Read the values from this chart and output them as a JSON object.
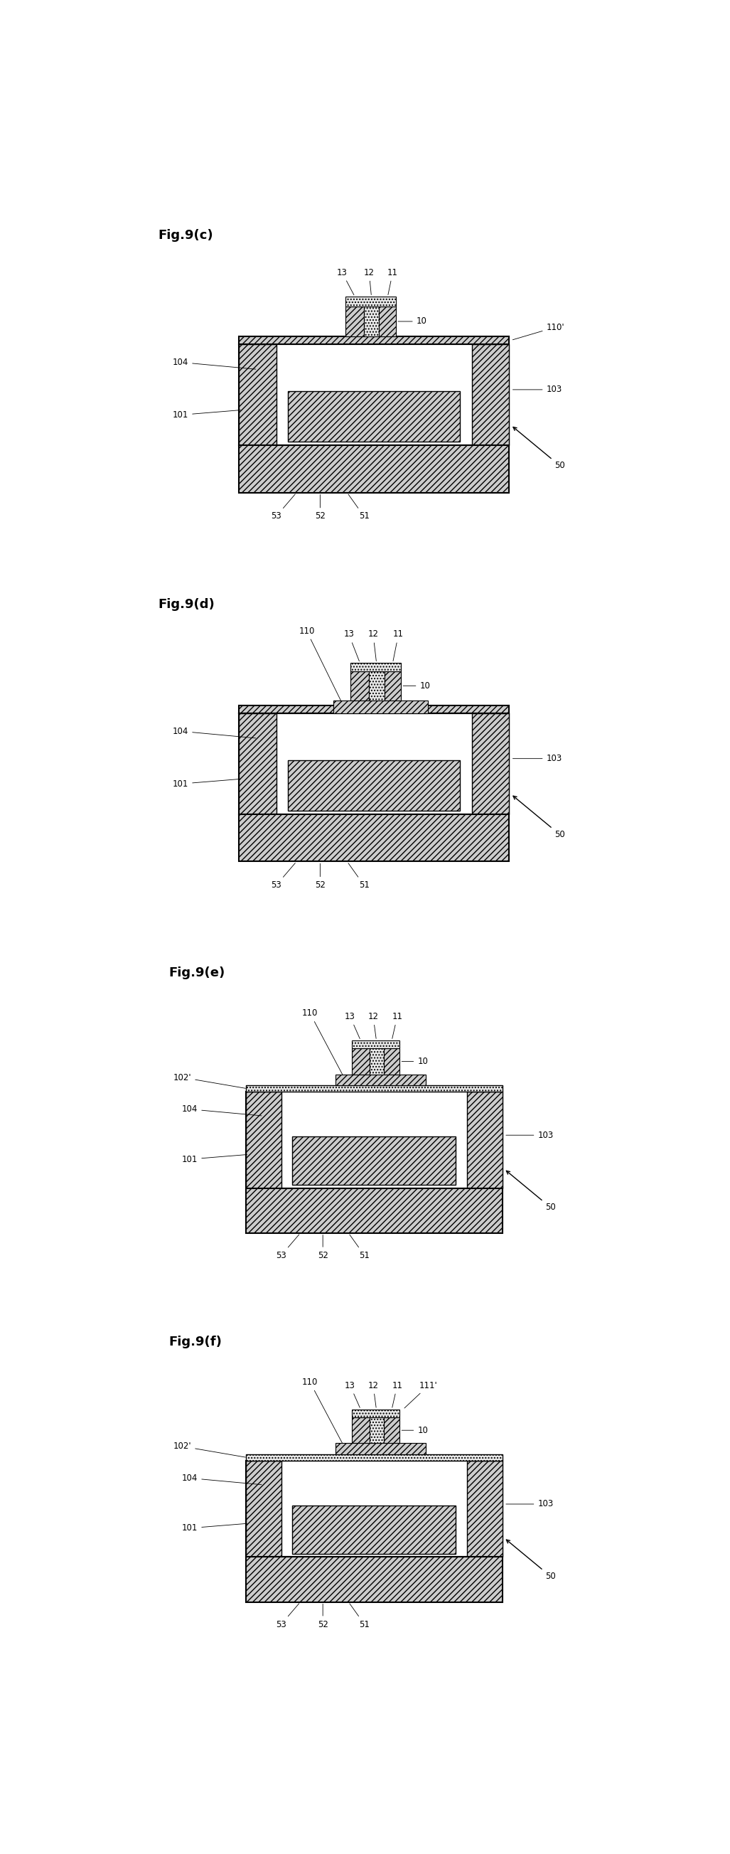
{
  "bg_color": "#ffffff",
  "figures": [
    {
      "label": "Fig.9(c)",
      "has_110_top_layer": false,
      "has_102": false,
      "has_111": false
    },
    {
      "label": "Fig.9(d)",
      "has_110_top_layer": true,
      "has_102": false,
      "has_111": false
    },
    {
      "label": "Fig.9(e)",
      "has_110_top_layer": true,
      "has_102": true,
      "has_111": false
    },
    {
      "label": "Fig.9(f)",
      "has_110_top_layer": true,
      "has_102": true,
      "has_111": true
    }
  ],
  "hatch_diagonal": "////",
  "hatch_dots": "....",
  "fc_hatch": "#cccccc",
  "fc_white": "#ffffff",
  "fc_dot": "#e8e8e8",
  "ec": "#000000",
  "fontsize_label": 13,
  "fontsize_annot": 8.5
}
